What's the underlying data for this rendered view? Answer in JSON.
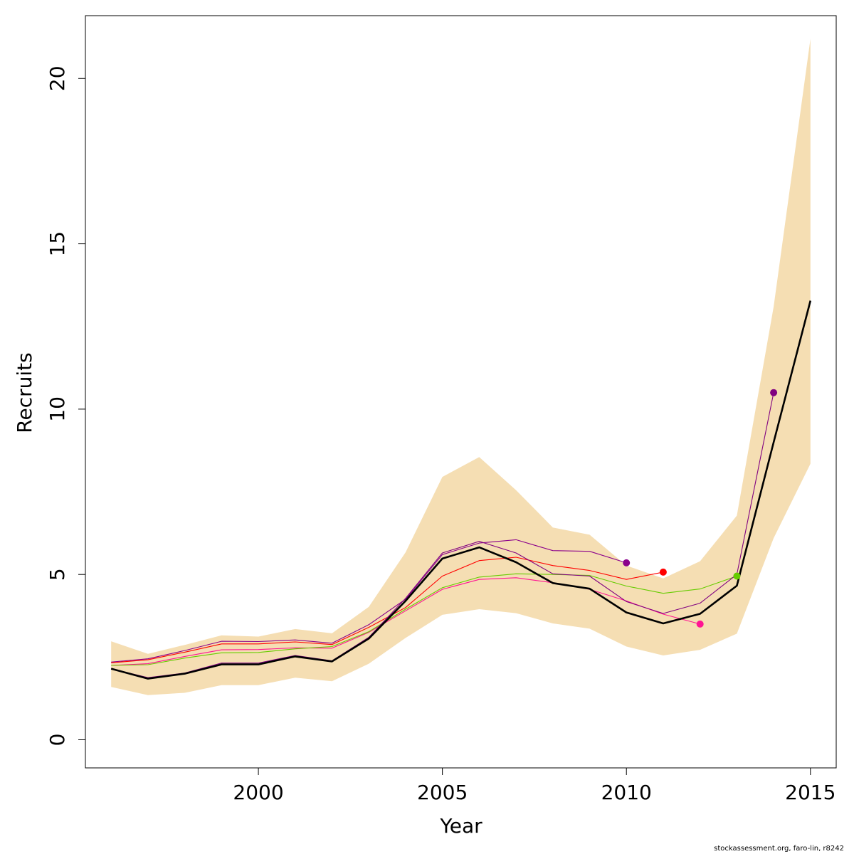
{
  "chart_data": {
    "type": "line",
    "title": "",
    "xlabel": "Year",
    "ylabel": "Recruits",
    "xlim": [
      1995.3,
      2015.7
    ],
    "ylim": [
      -0.85,
      21.9
    ],
    "x_ticks": [
      2000,
      2005,
      2010,
      2015
    ],
    "y_ticks": [
      0,
      5,
      10,
      15,
      20
    ],
    "grid": false,
    "legend": "none",
    "confidence_band": {
      "color": "#F5DEB3",
      "x": [
        1996,
        1997,
        1998,
        1999,
        2000,
        2001,
        2002,
        2003,
        2004,
        2005,
        2006,
        2007,
        2008,
        2009,
        2010,
        2011,
        2012,
        2013,
        2014,
        2015
      ],
      "lower": [
        1.6,
        1.35,
        1.42,
        1.65,
        1.65,
        1.88,
        1.77,
        2.3,
        3.08,
        3.78,
        3.95,
        3.83,
        3.52,
        3.36,
        2.82,
        2.55,
        2.72,
        3.21,
        6.1,
        8.35
      ],
      "upper": [
        2.98,
        2.6,
        2.87,
        3.16,
        3.12,
        3.35,
        3.22,
        4.02,
        5.67,
        7.95,
        8.55,
        7.55,
        6.42,
        6.2,
        5.27,
        4.88,
        5.4,
        6.78,
        13.1,
        21.2
      ]
    },
    "series": [
      {
        "color": "#000000",
        "width": 2.6,
        "x": [
          1996,
          1997,
          1998,
          1999,
          2000,
          2001,
          2002,
          2003,
          2004,
          2005,
          2006,
          2007,
          2008,
          2009,
          2010,
          2011,
          2012,
          2013,
          2014,
          2015
        ],
        "values": [
          2.15,
          1.85,
          2.0,
          2.28,
          2.28,
          2.52,
          2.37,
          3.06,
          4.2,
          5.48,
          5.82,
          5.37,
          4.74,
          4.57,
          3.85,
          3.52,
          3.81,
          4.66,
          9.0,
          13.28
        ]
      },
      {
        "color": "#8B008B",
        "width": 1.1,
        "x": [
          1996,
          1997,
          1998,
          1999,
          2000,
          2001,
          2002,
          2003,
          2004,
          2005,
          2006,
          2007,
          2008,
          2009,
          2010
        ],
        "values": [
          2.35,
          2.45,
          2.7,
          2.98,
          2.97,
          3.02,
          2.92,
          3.48,
          4.25,
          5.6,
          5.95,
          6.05,
          5.72,
          5.7,
          5.35
        ],
        "endpoint": true
      },
      {
        "color": "#FF0000",
        "width": 1.1,
        "x": [
          1996,
          1997,
          1998,
          1999,
          2000,
          2001,
          2002,
          2003,
          2004,
          2005,
          2006,
          2007,
          2008,
          2009,
          2010,
          2011
        ],
        "values": [
          2.33,
          2.42,
          2.65,
          2.9,
          2.9,
          2.96,
          2.88,
          3.4,
          4.0,
          4.95,
          5.42,
          5.52,
          5.27,
          5.12,
          4.85,
          5.07
        ],
        "endpoint": true
      },
      {
        "color": "#FF1493",
        "width": 1.1,
        "x": [
          1996,
          1997,
          1998,
          1999,
          2000,
          2001,
          2002,
          2003,
          2004,
          2005,
          2006,
          2007,
          2008,
          2009,
          2010,
          2011,
          2012
        ],
        "values": [
          2.25,
          2.3,
          2.52,
          2.72,
          2.73,
          2.78,
          2.77,
          3.25,
          3.9,
          4.55,
          4.85,
          4.9,
          4.75,
          4.55,
          4.2,
          3.8,
          3.5
        ],
        "endpoint": true
      },
      {
        "color": "#66CC00",
        "width": 1.1,
        "x": [
          1996,
          1997,
          1998,
          1999,
          2000,
          2001,
          2002,
          2003,
          2004,
          2005,
          2006,
          2007,
          2008,
          2009,
          2010,
          2011,
          2012,
          2013
        ],
        "values": [
          2.25,
          2.27,
          2.47,
          2.63,
          2.64,
          2.75,
          2.82,
          3.27,
          3.95,
          4.6,
          4.92,
          5.02,
          5.0,
          4.97,
          4.65,
          4.43,
          4.56,
          4.95
        ],
        "endpoint": true
      },
      {
        "color": "#800080",
        "width": 1.1,
        "x": [
          1996,
          1997,
          1998,
          1999,
          2000,
          2001,
          2002,
          2003,
          2004,
          2005,
          2006,
          2007,
          2008,
          2009,
          2010,
          2011,
          2012,
          2013,
          2014
        ],
        "values": [
          2.15,
          1.88,
          2.02,
          2.32,
          2.32,
          2.55,
          2.39,
          3.1,
          4.28,
          5.65,
          6.0,
          5.65,
          5.02,
          4.95,
          4.18,
          3.82,
          4.13,
          5.0,
          10.5
        ],
        "endpoint": true
      }
    ]
  },
  "credit": "stockassessment.org, faro-lin, r8242"
}
